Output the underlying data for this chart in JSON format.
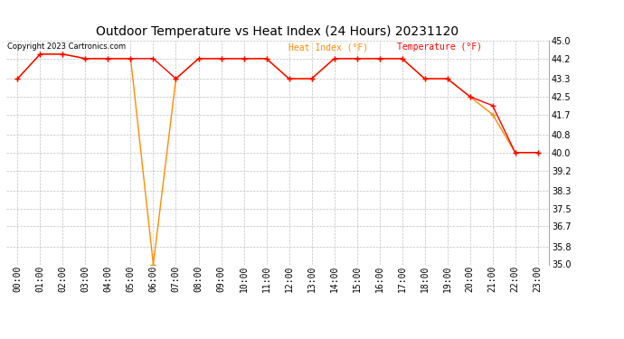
{
  "title": "Outdoor Temperature vs Heat Index (24 Hours) 20231120",
  "copyright": "Copyright 2023 Cartronics.com",
  "legend_heat": "Heat Index (°F)",
  "legend_temp": "Temperature (°F)",
  "x_labels": [
    "00:00",
    "01:00",
    "02:00",
    "03:00",
    "04:00",
    "05:00",
    "06:00",
    "07:00",
    "08:00",
    "09:00",
    "10:00",
    "11:00",
    "12:00",
    "13:00",
    "14:00",
    "15:00",
    "16:00",
    "17:00",
    "18:00",
    "19:00",
    "20:00",
    "21:00",
    "22:00",
    "23:00"
  ],
  "temperature": [
    43.3,
    44.4,
    44.4,
    44.2,
    44.2,
    44.2,
    44.2,
    43.3,
    44.2,
    44.2,
    44.2,
    44.2,
    43.3,
    43.3,
    44.2,
    44.2,
    44.2,
    44.2,
    43.3,
    43.3,
    42.5,
    42.1,
    40.0,
    40.0
  ],
  "heat_index": [
    43.3,
    44.4,
    44.4,
    44.2,
    44.2,
    44.2,
    35.0,
    43.3,
    44.2,
    44.2,
    44.2,
    44.2,
    43.3,
    43.3,
    44.2,
    44.2,
    44.2,
    44.2,
    43.3,
    43.3,
    42.5,
    41.7,
    40.0,
    40.0
  ],
  "ylim": [
    35.0,
    45.0
  ],
  "yticks": [
    35.0,
    35.8,
    36.7,
    37.5,
    38.3,
    39.2,
    40.0,
    40.8,
    41.7,
    42.5,
    43.3,
    44.2,
    45.0
  ],
  "temp_color": "#ff0000",
  "heat_color": "#ff8c00",
  "grid_color": "#c0c0c0",
  "bg_color": "#ffffff",
  "title_fontsize": 10,
  "tick_fontsize": 7,
  "copy_fontsize": 6,
  "legend_fontsize": 7
}
